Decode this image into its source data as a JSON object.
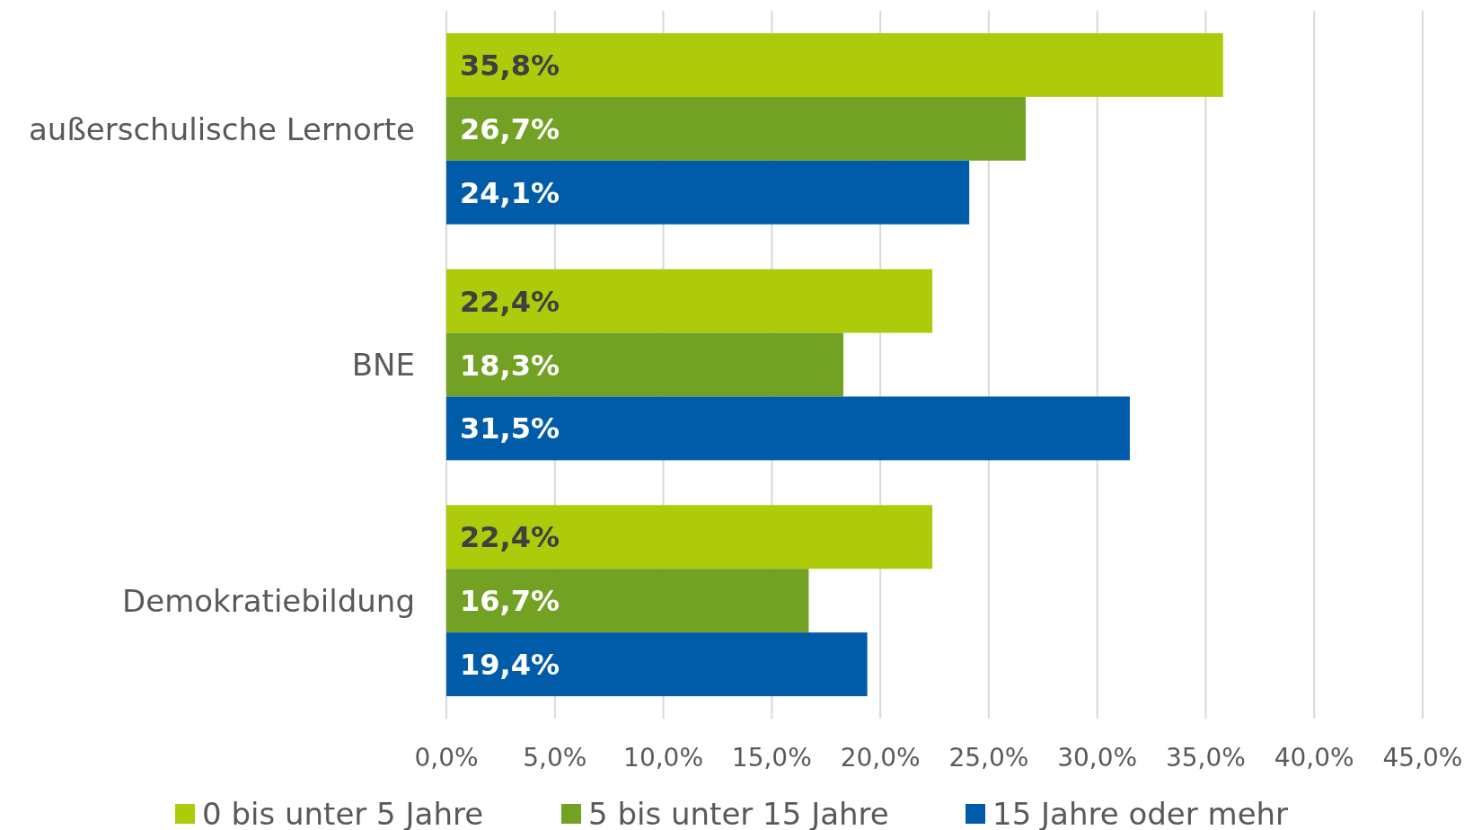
{
  "chart_data": {
    "type": "bar",
    "orientation": "horizontal",
    "categories": [
      "außerschulische Lernorte",
      "BNE",
      "Demokratiebildung"
    ],
    "series": [
      {
        "name": "0 bis unter 5 Jahre",
        "color": "#adcb0b",
        "values": [
          35.8,
          22.4,
          22.4
        ],
        "value_labels": [
          "35,8%",
          "22,4%",
          "22,4%"
        ]
      },
      {
        "name": "5 bis unter 15 Jahre",
        "color": "#72a124",
        "values": [
          26.7,
          18.3,
          16.7
        ],
        "value_labels": [
          "26,7%",
          "18,3%",
          "16,7%"
        ]
      },
      {
        "name": "15 Jahre oder mehr",
        "color": "#005ca9",
        "values": [
          24.1,
          31.5,
          19.4
        ],
        "value_labels": [
          "24,1%",
          "31,5%",
          "19,4%"
        ]
      }
    ],
    "xlim": [
      0,
      45
    ],
    "xticks": [
      {
        "value": 0,
        "label": "0,0%"
      },
      {
        "value": 5,
        "label": "5,0%"
      },
      {
        "value": 10,
        "label": "10,0%"
      },
      {
        "value": 15,
        "label": "15,0%"
      },
      {
        "value": 20,
        "label": "20,0%"
      },
      {
        "value": 25,
        "label": "25,0%"
      },
      {
        "value": 30,
        "label": "30,0%"
      },
      {
        "value": 35,
        "label": "35,0%"
      },
      {
        "value": 40,
        "label": "40,0%"
      },
      {
        "value": 45,
        "label": "45,0%"
      }
    ],
    "grid": "x",
    "legend": "bottom"
  }
}
